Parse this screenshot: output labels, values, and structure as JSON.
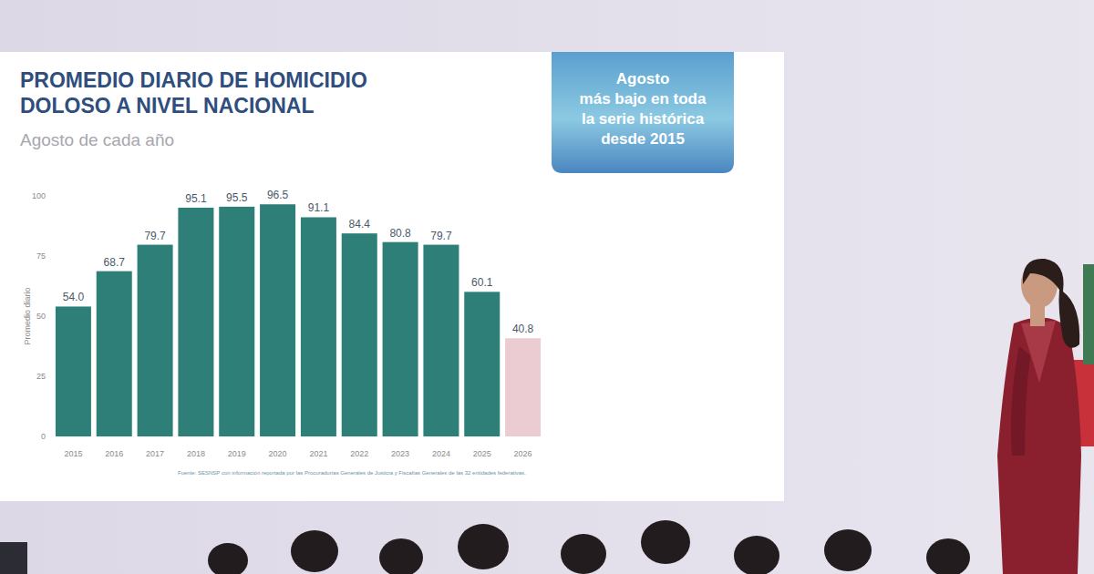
{
  "chart_data": {
    "type": "bar",
    "title": [
      "PROMEDIO DIARIO DE HOMICIDIO",
      "DOLOSO A NIVEL NACIONAL"
    ],
    "subtitle": "Agosto de cada año",
    "annotation": [
      "Agosto",
      "más bajo en toda",
      "la serie histórica",
      "desde 2015"
    ],
    "y_label": "Promedio diario",
    "source": "Fuente: SESNSP con información reportada por las Procuradurías Generales de Justicia y Fiscalías Generales de las 32 entidades federativas.",
    "categories": [
      "2015",
      "2016",
      "2017",
      "2018",
      "2019",
      "2020",
      "2021",
      "2022",
      "2023",
      "2024",
      "2025",
      "2026"
    ],
    "values": [
      54.0,
      68.7,
      79.7,
      95.1,
      95.5,
      96.5,
      91.1,
      84.4,
      80.8,
      79.7,
      60.1,
      40.8
    ],
    "value_labels": [
      "54.0",
      "68.7",
      "79.7",
      "95.1",
      "95.5",
      "96.5",
      "91.1",
      "84.4",
      "80.8",
      "79.7",
      "60.1",
      "40.8"
    ],
    "colors": [
      "#2e7f78",
      "#2e7f78",
      "#2e7f78",
      "#2e7f78",
      "#2e7f78",
      "#2e7f78",
      "#2e7f78",
      "#2e7f78",
      "#2e7f78",
      "#2e7f78",
      "#2e7f78",
      "#ebccd3"
    ],
    "ylim": [
      0,
      100
    ],
    "yticks": [
      0,
      25,
      50,
      75,
      100
    ],
    "grid": false,
    "data_labels": true
  }
}
